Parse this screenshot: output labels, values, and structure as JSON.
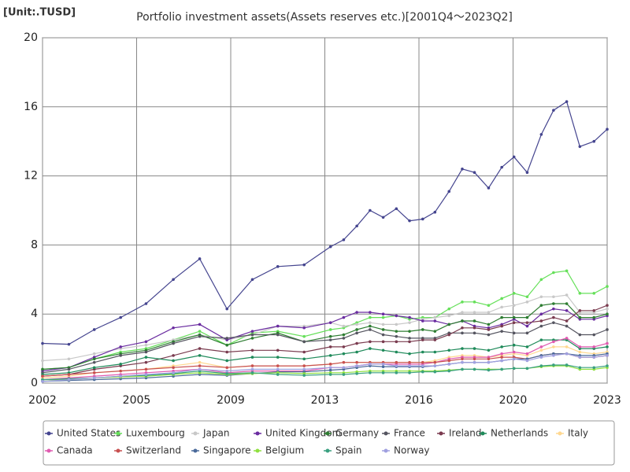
{
  "chart_data": {
    "type": "line",
    "unit_label": "[Unit:.TUSD]",
    "title": "Portfolio investment assets(Assets reserves etc.)[2001Q4～2023Q2]",
    "x": [
      0,
      0.28,
      0.55,
      0.83,
      1.1,
      1.39,
      1.67,
      1.96,
      2.23,
      2.5,
      2.78,
      3.06,
      3.2,
      3.34,
      3.48,
      3.62,
      3.76,
      3.9,
      4.04,
      4.17,
      4.32,
      4.46,
      4.59,
      4.74,
      4.88,
      5.01,
      5.15,
      5.3,
      5.43,
      5.57,
      5.71,
      5.86,
      6.0
    ],
    "xlim": [
      0,
      6
    ],
    "xticks": [
      {
        "value": 0,
        "label": "2002"
      },
      {
        "value": 1,
        "label": "2005"
      },
      {
        "value": 2,
        "label": "2009"
      },
      {
        "value": 3,
        "label": "2013"
      },
      {
        "value": 4,
        "label": "2016"
      },
      {
        "value": 5,
        "label": "2020"
      },
      {
        "value": 6,
        "label": "2023"
      }
    ],
    "ylim": [
      0,
      20
    ],
    "yticks": [
      0,
      4,
      8,
      12,
      16,
      20
    ],
    "grid": true,
    "series": [
      {
        "name": "United States",
        "color": "#45458f",
        "values": [
          2.3,
          2.25,
          3.1,
          3.8,
          4.6,
          6.0,
          7.2,
          4.3,
          6.0,
          6.75,
          6.85,
          7.9,
          8.3,
          9.1,
          10.0,
          9.6,
          10.1,
          9.4,
          9.5,
          9.9,
          11.1,
          12.4,
          12.2,
          11.3,
          12.5,
          13.1,
          12.2,
          14.4,
          15.8,
          16.3,
          13.7,
          14.0,
          14.7
        ]
      },
      {
        "name": "Luxembourg",
        "color": "#66e05a",
        "values": [
          0.8,
          0.9,
          1.4,
          1.8,
          2.0,
          2.5,
          3.0,
          2.2,
          2.9,
          3.0,
          2.7,
          3.1,
          3.2,
          3.5,
          3.8,
          3.8,
          3.9,
          3.7,
          3.8,
          3.8,
          4.3,
          4.7,
          4.7,
          4.5,
          4.9,
          5.2,
          5.0,
          6.0,
          6.4,
          6.5,
          5.2,
          5.2,
          5.6
        ]
      },
      {
        "name": "Japan",
        "color": "#c8c8c8",
        "values": [
          1.3,
          1.4,
          1.7,
          2.0,
          2.2,
          2.5,
          2.8,
          2.5,
          2.8,
          3.3,
          3.3,
          3.5,
          3.3,
          3.4,
          3.5,
          3.4,
          3.4,
          3.5,
          3.7,
          3.8,
          3.9,
          4.1,
          4.1,
          4.1,
          4.4,
          4.5,
          4.7,
          5.0,
          5.0,
          5.1,
          4.1,
          4.1,
          4.3
        ]
      },
      {
        "name": "United Kingdom",
        "color": "#6a2ca0",
        "values": [
          0.7,
          0.9,
          1.5,
          2.1,
          2.4,
          3.2,
          3.4,
          2.5,
          3.0,
          3.3,
          3.2,
          3.5,
          3.8,
          4.1,
          4.1,
          4.0,
          3.9,
          3.8,
          3.6,
          3.6,
          3.4,
          3.6,
          3.3,
          3.2,
          3.4,
          3.7,
          3.3,
          4.0,
          4.3,
          4.2,
          3.7,
          3.7,
          3.9
        ]
      },
      {
        "name": "Germany",
        "color": "#2e7d32",
        "values": [
          0.8,
          0.9,
          1.4,
          1.7,
          1.9,
          2.4,
          2.8,
          2.2,
          2.6,
          2.9,
          2.4,
          2.7,
          2.8,
          3.1,
          3.3,
          3.1,
          3.0,
          3.0,
          3.1,
          3.0,
          3.4,
          3.6,
          3.6,
          3.4,
          3.8,
          3.8,
          3.8,
          4.5,
          4.6,
          4.6,
          3.8,
          3.8,
          4.0
        ]
      },
      {
        "name": "France",
        "color": "#555560",
        "values": [
          0.6,
          0.8,
          1.2,
          1.6,
          1.8,
          2.3,
          2.7,
          2.6,
          2.8,
          2.8,
          2.4,
          2.5,
          2.6,
          2.9,
          3.1,
          2.8,
          2.7,
          2.6,
          2.6,
          2.6,
          2.9,
          2.9,
          2.9,
          2.8,
          3.0,
          2.9,
          2.9,
          3.3,
          3.5,
          3.3,
          2.8,
          2.8,
          3.1
        ]
      },
      {
        "name": "Ireland",
        "color": "#7a3b4f",
        "values": [
          0.4,
          0.5,
          0.8,
          1.0,
          1.2,
          1.6,
          2.0,
          1.8,
          1.9,
          1.9,
          1.8,
          2.1,
          2.1,
          2.3,
          2.4,
          2.4,
          2.4,
          2.4,
          2.5,
          2.5,
          2.8,
          3.2,
          3.2,
          3.1,
          3.3,
          3.5,
          3.5,
          3.6,
          3.8,
          3.6,
          4.2,
          4.2,
          4.5
        ]
      },
      {
        "name": "Netherlands",
        "color": "#1f8a5a",
        "values": [
          0.5,
          0.6,
          0.9,
          1.1,
          1.5,
          1.3,
          1.6,
          1.3,
          1.5,
          1.5,
          1.4,
          1.6,
          1.7,
          1.8,
          2.0,
          1.9,
          1.8,
          1.7,
          1.8,
          1.8,
          1.9,
          2.0,
          2.0,
          1.9,
          2.1,
          2.2,
          2.1,
          2.5,
          2.5,
          2.5,
          2.0,
          2.0,
          2.1
        ]
      },
      {
        "name": "Italy",
        "color": "#ffd890",
        "values": [
          0.3,
          0.4,
          0.6,
          0.7,
          0.8,
          1.0,
          1.2,
          0.9,
          1.0,
          1.0,
          1.0,
          1.1,
          1.2,
          1.2,
          1.2,
          1.2,
          1.2,
          1.2,
          1.2,
          1.3,
          1.5,
          1.6,
          1.6,
          1.5,
          1.6,
          1.7,
          1.6,
          1.9,
          2.1,
          2.1,
          1.8,
          1.7,
          1.8
        ]
      },
      {
        "name": "Canada",
        "color": "#e05ab0",
        "values": [
          0.2,
          0.3,
          0.4,
          0.5,
          0.6,
          0.7,
          0.8,
          0.6,
          0.7,
          0.7,
          0.7,
          0.9,
          0.9,
          1.0,
          1.1,
          1.1,
          1.1,
          1.1,
          1.1,
          1.2,
          1.4,
          1.5,
          1.5,
          1.5,
          1.7,
          1.8,
          1.7,
          2.1,
          2.4,
          2.6,
          2.1,
          2.1,
          2.3
        ]
      },
      {
        "name": "Switzerland",
        "color": "#c85050",
        "values": [
          0.4,
          0.5,
          0.6,
          0.7,
          0.8,
          0.9,
          1.0,
          0.9,
          1.0,
          1.0,
          1.0,
          1.1,
          1.2,
          1.2,
          1.2,
          1.2,
          1.2,
          1.2,
          1.2,
          1.2,
          1.3,
          1.4,
          1.4,
          1.4,
          1.5,
          1.5,
          1.4,
          1.6,
          1.7,
          1.7,
          1.5,
          1.5,
          1.6
        ]
      },
      {
        "name": "Singapore",
        "color": "#4a6a9a",
        "values": [
          0.1,
          0.15,
          0.2,
          0.25,
          0.3,
          0.4,
          0.5,
          0.45,
          0.55,
          0.65,
          0.65,
          0.75,
          0.8,
          0.9,
          1.0,
          0.95,
          0.95,
          0.95,
          0.95,
          1.0,
          1.1,
          1.2,
          1.2,
          1.2,
          1.3,
          1.4,
          1.4,
          1.6,
          1.7,
          1.7,
          1.6,
          1.6,
          1.7
        ]
      },
      {
        "name": "Belgium",
        "color": "#90e040",
        "values": [
          0.2,
          0.2,
          0.3,
          0.35,
          0.4,
          0.5,
          0.6,
          0.5,
          0.55,
          0.6,
          0.55,
          0.6,
          0.6,
          0.65,
          0.7,
          0.7,
          0.7,
          0.7,
          0.7,
          0.7,
          0.75,
          0.8,
          0.8,
          0.8,
          0.8,
          0.85,
          0.85,
          0.95,
          1.0,
          1.0,
          0.8,
          0.8,
          0.9
        ]
      },
      {
        "name": "Spain",
        "color": "#3aa080",
        "values": [
          0.2,
          0.25,
          0.3,
          0.4,
          0.45,
          0.55,
          0.7,
          0.55,
          0.6,
          0.5,
          0.45,
          0.5,
          0.5,
          0.55,
          0.6,
          0.6,
          0.6,
          0.6,
          0.65,
          0.65,
          0.7,
          0.8,
          0.8,
          0.75,
          0.8,
          0.85,
          0.85,
          1.0,
          1.05,
          1.05,
          0.9,
          0.9,
          1.0
        ]
      },
      {
        "name": "Norway",
        "color": "#a0a0e0",
        "values": [
          0.1,
          0.2,
          0.3,
          0.4,
          0.5,
          0.6,
          0.8,
          0.7,
          0.8,
          0.8,
          0.8,
          0.9,
          0.9,
          1.0,
          1.1,
          1.1,
          1.0,
          1.0,
          1.0,
          1.0,
          1.1,
          1.2,
          1.2,
          1.2,
          1.3,
          1.4,
          1.3,
          1.5,
          1.6,
          1.7,
          1.5,
          1.5,
          1.6
        ]
      }
    ]
  }
}
